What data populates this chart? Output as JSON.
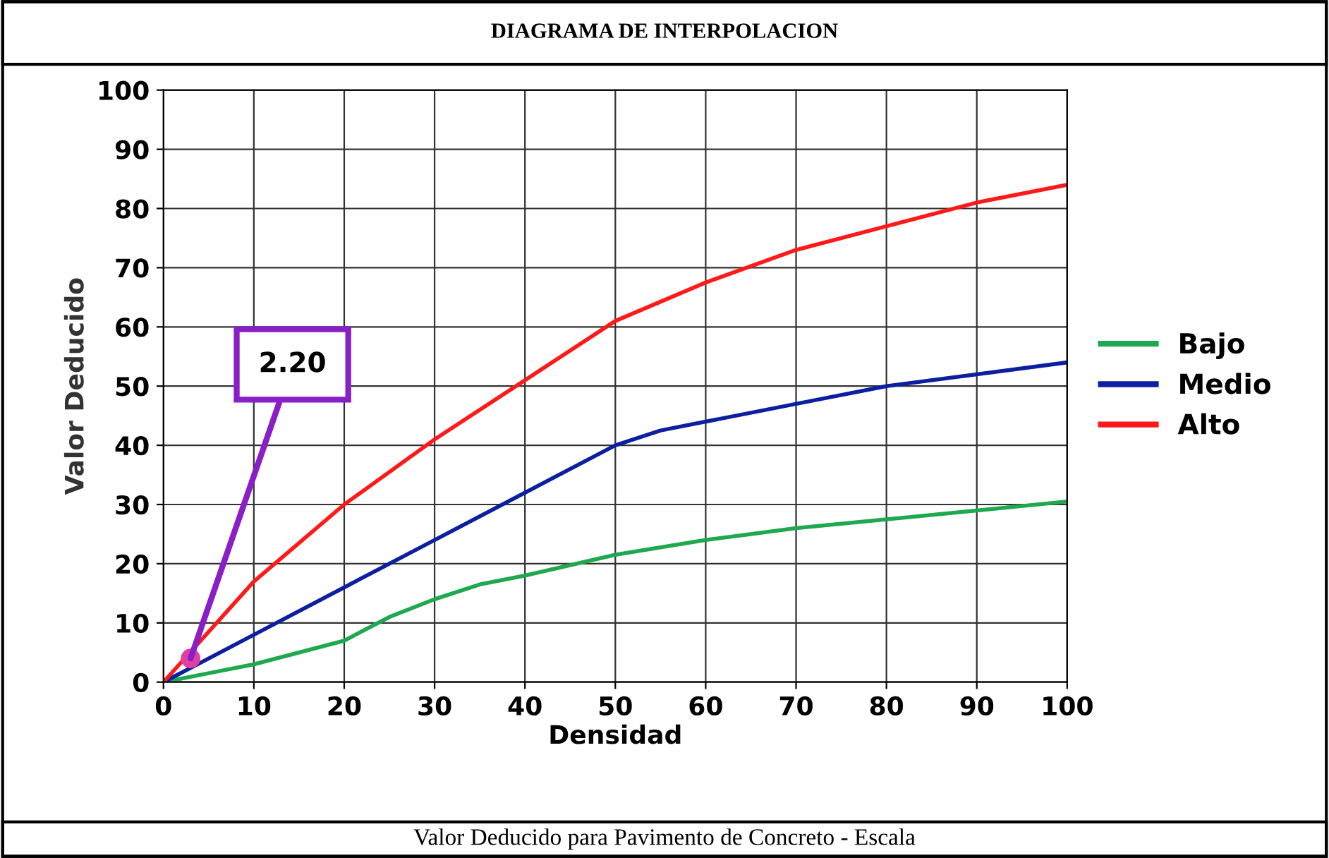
{
  "chart_data": {
    "type": "line",
    "title": "DIAGRAMA DE INTERPOLACION",
    "xlabel": "Densidad",
    "ylabel": "Valor Deducido",
    "series": [
      {
        "name": "Bajo",
        "color": "#1fa84f",
        "x": [
          0,
          5,
          10,
          15,
          20,
          25,
          30,
          35,
          40,
          50,
          60,
          70,
          80,
          90,
          100
        ],
        "values": [
          0,
          1.5,
          3,
          5,
          7,
          11,
          14,
          16.5,
          18,
          21.5,
          24,
          26,
          27.5,
          29,
          30.5
        ]
      },
      {
        "name": "Medio",
        "color": "#0b1fa0",
        "x": [
          0,
          10,
          20,
          30,
          40,
          50,
          55,
          60,
          70,
          80,
          90,
          100
        ],
        "values": [
          0,
          8,
          16,
          24,
          32,
          40,
          42.5,
          44,
          47,
          50,
          52,
          54
        ]
      },
      {
        "name": "Alto",
        "color": "#ff1a1a",
        "x": [
          0,
          10,
          20,
          30,
          40,
          50,
          60,
          70,
          80,
          90,
          100
        ],
        "values": [
          0,
          17,
          30,
          41,
          51,
          61,
          67.5,
          73,
          77,
          81,
          84
        ]
      },
      {
        "type": "scatter",
        "marker": "circle",
        "color": "#e040a0",
        "x": [
          3
        ],
        "values": [
          4
        ]
      }
    ],
    "xlim": [
      0,
      100
    ],
    "ylim": [
      0,
      100
    ],
    "xticks": [
      0,
      10,
      20,
      30,
      40,
      50,
      60,
      70,
      80,
      90,
      100
    ],
    "yticks": [
      0,
      10,
      20,
      30,
      40,
      50,
      60,
      70,
      80,
      90,
      100
    ],
    "grid": true,
    "legend": "right",
    "marker": "none",
    "line_style": "solid",
    "annotations": [
      {
        "text": "2.20",
        "x": 3,
        "y": 4
      },
      "Valor Deducido para Pavimento de Concreto - Escala"
    ]
  }
}
